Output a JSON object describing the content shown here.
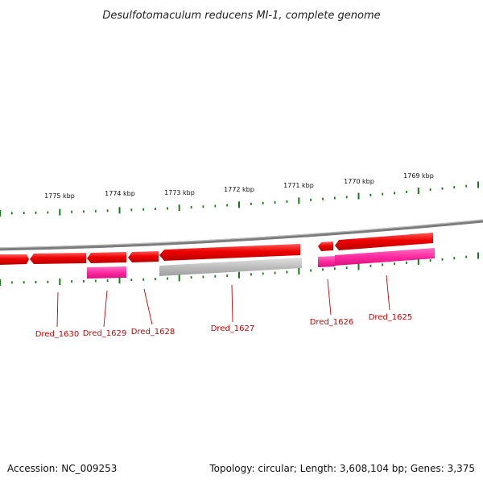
{
  "title": "Desulfotomaculum reducens MI-1, complete genome",
  "footer": {
    "accession": "Accession: NC_009253",
    "summary": "Topology: circular; Length: 3,608,104 bp; Genes: 3,375"
  },
  "scale_labels": [
    "1775 kbp",
    "1774 kbp",
    "1773 kbp",
    "1772 kbp",
    "1771 kbp",
    "1770 kbp",
    "1769 kbp"
  ],
  "gene_labels": [
    "Dred_1630",
    "Dred_1629",
    "Dred_1628",
    "Dred_1627",
    "Dred_1626",
    "Dred_1625"
  ],
  "colors": {
    "cds": "#ee0000",
    "feature_magenta": "#ff2aa0",
    "feature_gray": "#bbbbbb",
    "backbone": "#8a8a8a",
    "ticks": "#1a7a1a",
    "label_text": "#cc0000"
  }
}
